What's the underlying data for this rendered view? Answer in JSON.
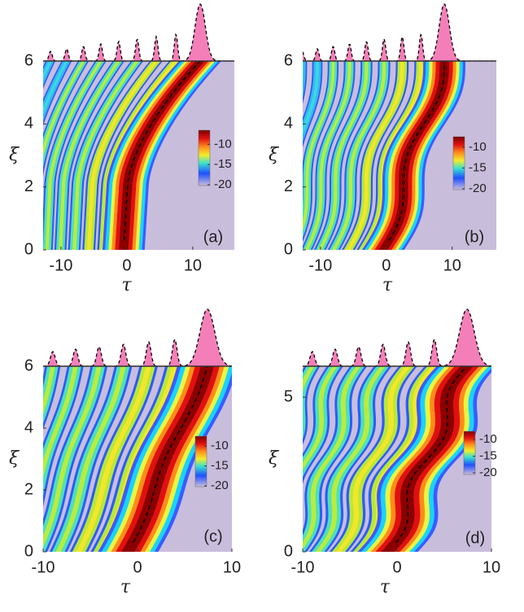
{
  "chart_data": [
    {
      "type": "heatmap",
      "label": "(a)",
      "x_label": "τ",
      "y_label": "ξ",
      "xlim": [
        -12.7,
        16.3
      ],
      "xticks": [
        -10,
        0,
        10
      ],
      "ylim": [
        0,
        6
      ],
      "yticks": [
        0,
        2,
        4,
        6
      ],
      "colorbar": {
        "lim": [
          -20.2,
          -6.5
        ],
        "ticks": [
          -10,
          -15,
          -20
        ]
      }
    },
    {
      "type": "heatmap",
      "label": "(b)",
      "x_label": "τ",
      "y_label": "ξ",
      "xlim": [
        -12.7,
        16.7
      ],
      "xticks": [
        -10,
        0,
        10
      ],
      "ylim": [
        0,
        6
      ],
      "yticks": [
        0,
        2,
        4,
        6
      ],
      "colorbar": {
        "lim": [
          -20.2,
          -7.5
        ],
        "ticks": [
          -10,
          -15,
          -20
        ]
      }
    },
    {
      "type": "heatmap",
      "label": "(c)",
      "x_label": "τ",
      "y_label": "ξ",
      "xlim": [
        -10,
        10
      ],
      "xticks": [
        -10,
        0,
        10
      ],
      "ylim": [
        0,
        6
      ],
      "yticks": [
        0,
        2,
        4,
        6
      ],
      "colorbar": {
        "lim": [
          -20.2,
          -7.5
        ],
        "ticks": [
          -10,
          -15,
          -20
        ]
      }
    },
    {
      "type": "heatmap",
      "label": "(d)",
      "x_label": "τ",
      "y_label": "ξ",
      "xlim": [
        -10,
        10
      ],
      "xticks": [
        -10,
        0,
        10
      ],
      "ylim": [
        0,
        6
      ],
      "yticks": [
        0,
        5
      ],
      "colorbar": {
        "lim": [
          -20.5,
          -7.5
        ],
        "ticks": [
          -10,
          -15,
          -20
        ]
      }
    }
  ]
}
